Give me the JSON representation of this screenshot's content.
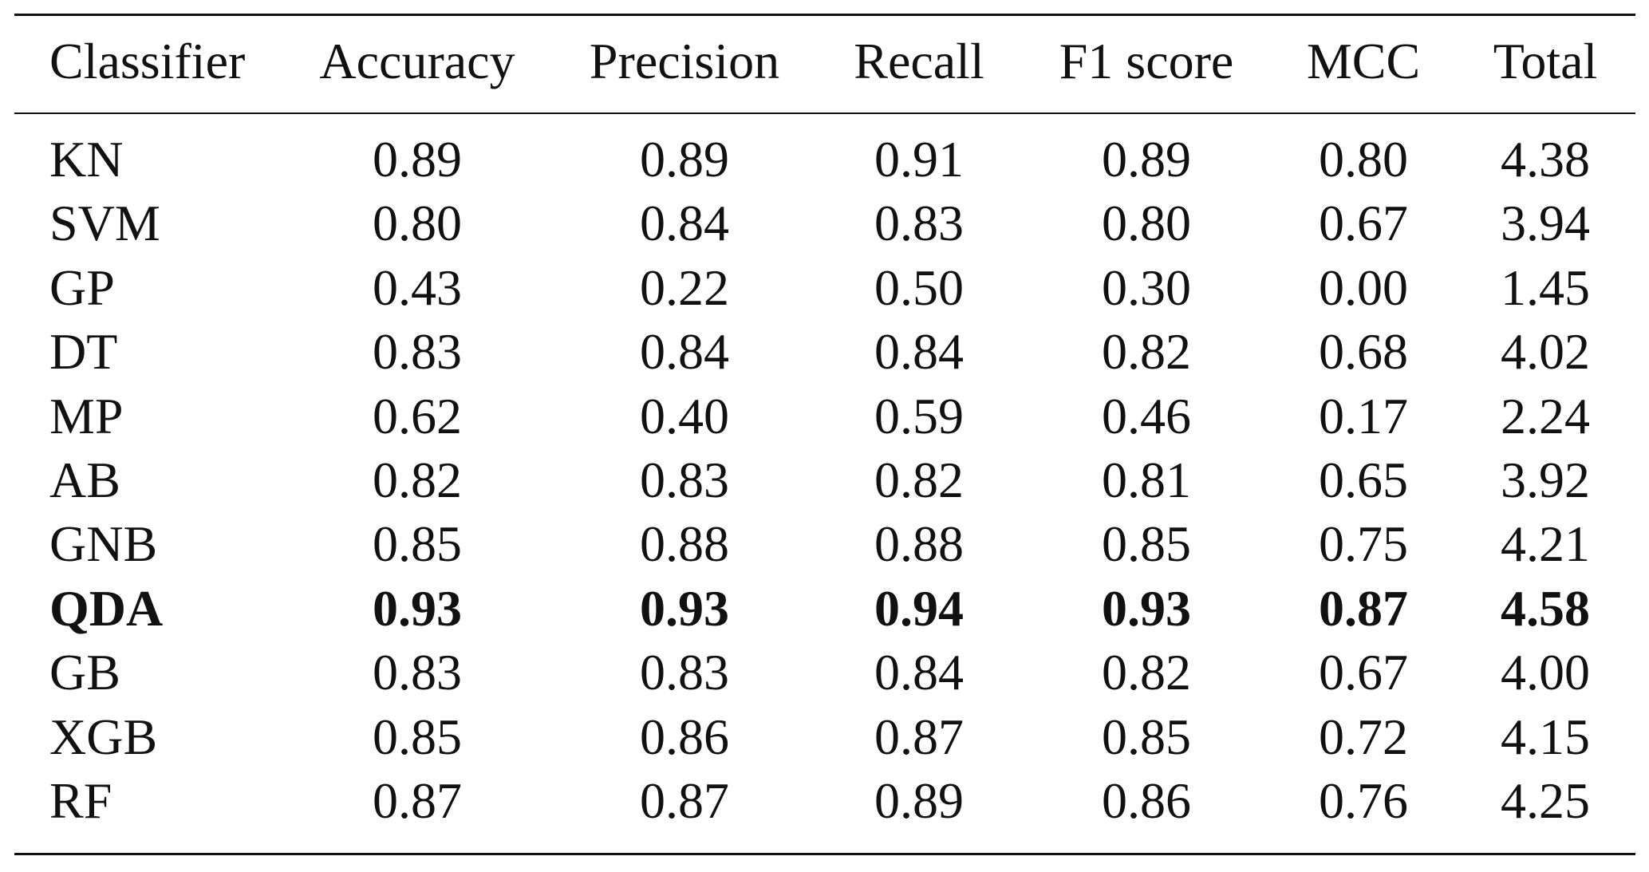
{
  "table": {
    "header": [
      "Classifier",
      "Accuracy",
      "Precision",
      "Recall",
      "F1 score",
      "MCC",
      "Total"
    ],
    "rows": [
      [
        "KN",
        "0.89",
        "0.89",
        "0.91",
        "0.89",
        "0.80",
        "4.38"
      ],
      [
        "SVM",
        "0.80",
        "0.84",
        "0.83",
        "0.80",
        "0.67",
        "3.94"
      ],
      [
        "GP",
        "0.43",
        "0.22",
        "0.50",
        "0.30",
        "0.00",
        "1.45"
      ],
      [
        "DT",
        "0.83",
        "0.84",
        "0.84",
        "0.82",
        "0.68",
        "4.02"
      ],
      [
        "MP",
        "0.62",
        "0.40",
        "0.59",
        "0.46",
        "0.17",
        "2.24"
      ],
      [
        "AB",
        "0.82",
        "0.83",
        "0.82",
        "0.81",
        "0.65",
        "3.92"
      ],
      [
        "GNB",
        "0.85",
        "0.88",
        "0.88",
        "0.85",
        "0.75",
        "4.21"
      ],
      [
        "QDA",
        "0.93",
        "0.93",
        "0.94",
        "0.93",
        "0.87",
        "4.58"
      ],
      [
        "GB",
        "0.83",
        "0.83",
        "0.84",
        "0.82",
        "0.67",
        "4.00"
      ],
      [
        "XGB",
        "0.85",
        "0.86",
        "0.87",
        "0.85",
        "0.72",
        "4.15"
      ],
      [
        "RF",
        "0.87",
        "0.87",
        "0.89",
        "0.86",
        "0.76",
        "4.25"
      ]
    ]
  }
}
